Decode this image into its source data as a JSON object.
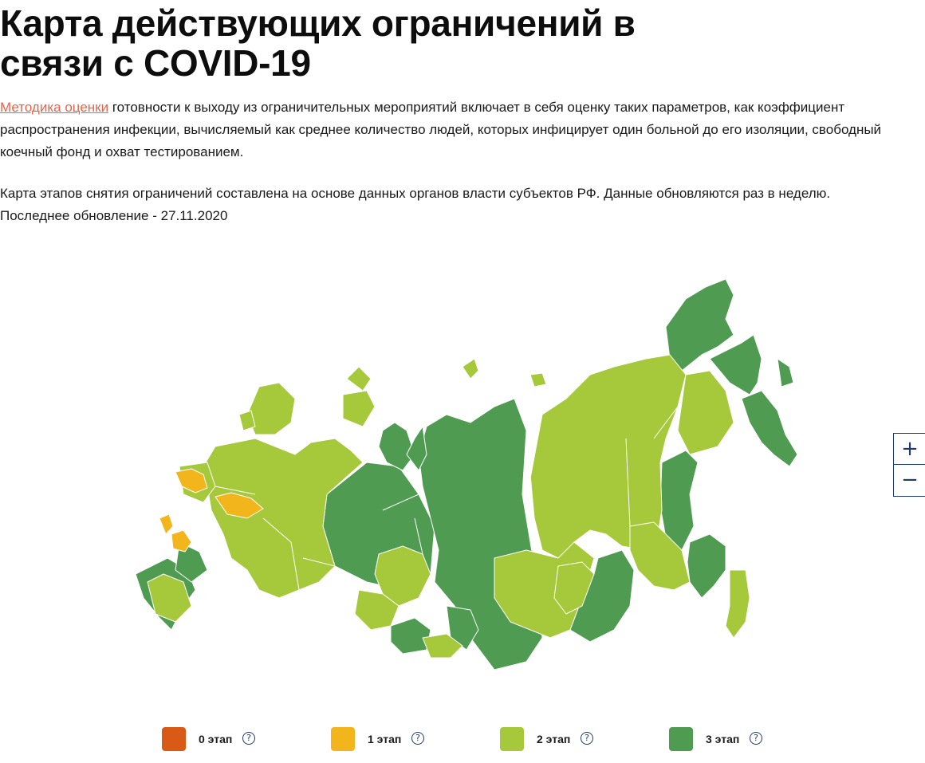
{
  "page": {
    "title": "Карта действующих ограничений в связи с COVID-19"
  },
  "intro": {
    "link_text": "Методика оценки",
    "text": " готовности к выходу из ограничительных мероприятий включает в себя оценку таких параметров, как коэффициент распространения инфекции, вычисляемый как среднее количество людей, которых инфицирует один больной до его изоляции, свободный коечный фонд и охват тестированием.",
    "note_line1": "Карта этапов снятия ограничений составлена на основе данных органов власти субъектов РФ. Данные обновляются раз в неделю.",
    "note_line2": "Последнее обновление - 27.11.2020"
  },
  "map": {
    "background_color": "#ffffff",
    "border_color": "#ffffff",
    "zoom_in_label": "+",
    "zoom_out_label": "−"
  },
  "legend": {
    "help_symbol": "?",
    "items": [
      {
        "label": "0 этап",
        "color": "#d95a17"
      },
      {
        "label": "1 этап",
        "color": "#f3b51c"
      },
      {
        "label": "2 этап",
        "color": "#a5c93a"
      },
      {
        "label": "3 этап",
        "color": "#4f9b52"
      }
    ]
  }
}
